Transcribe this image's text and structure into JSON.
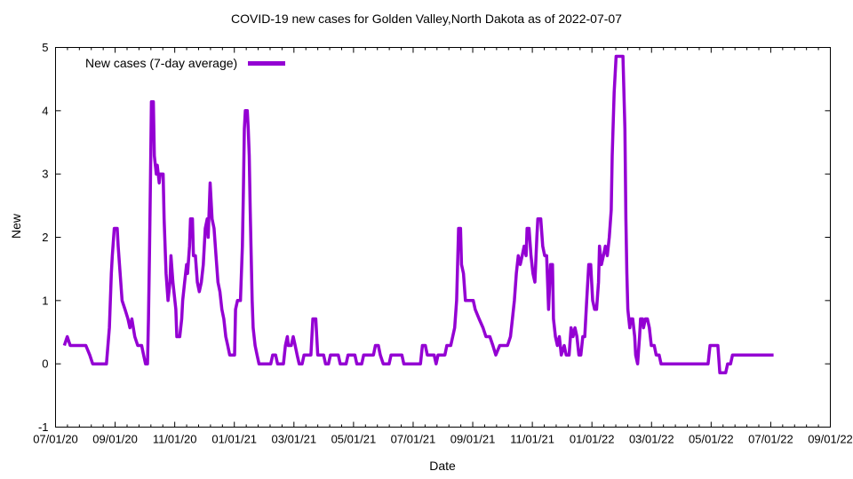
{
  "page": {
    "title": "COVID-19 new cases for Golden Valley,North Dakota as of 2022-07-07"
  },
  "chart": {
    "legend_label": "New cases (7-day average)",
    "x_label": "Date",
    "y_label": "New",
    "x_ticks": [
      "07/01/20",
      "09/01/20",
      "11/01/20",
      "01/01/21",
      "03/01/21",
      "05/01/21",
      "07/01/21",
      "09/01/21",
      "11/01/21",
      "01/01/22",
      "03/01/22",
      "05/01/22",
      "07/01/22",
      "09/01/22"
    ],
    "y_ticks": [
      "-1",
      "0",
      "1",
      "2",
      "3",
      "4",
      "5"
    ],
    "colors": {
      "line": "#9400d3",
      "axis": "#000000",
      "background": "#ffffff",
      "text": "#000000"
    }
  },
  "chart_data": {
    "type": "line",
    "title": "COVID-19 new cases for Golden Valley,North Dakota as of 2022-07-07",
    "xlabel": "Date",
    "ylabel": "New",
    "x_range": [
      "2020-07-01",
      "2022-09-01"
    ],
    "ylim": [
      -1,
      5
    ],
    "grid": false,
    "legend_position": "top-left-inside",
    "series": [
      {
        "name": "New cases (7-day average)",
        "color": "#9400d3",
        "points": [
          [
            "2020-07-10",
            0.29
          ],
          [
            "2020-07-13",
            0.43
          ],
          [
            "2020-07-16",
            0.29
          ],
          [
            "2020-08-01",
            0.29
          ],
          [
            "2020-08-05",
            0.14
          ],
          [
            "2020-08-08",
            0.0
          ],
          [
            "2020-08-22",
            0.0
          ],
          [
            "2020-08-25",
            0.57
          ],
          [
            "2020-08-26",
            1.0
          ],
          [
            "2020-08-27",
            1.43
          ],
          [
            "2020-08-28",
            1.71
          ],
          [
            "2020-08-30",
            2.14
          ],
          [
            "2020-09-02",
            2.14
          ],
          [
            "2020-09-03",
            1.86
          ],
          [
            "2020-09-05",
            1.43
          ],
          [
            "2020-09-07",
            1.0
          ],
          [
            "2020-09-10",
            0.86
          ],
          [
            "2020-09-13",
            0.71
          ],
          [
            "2020-09-15",
            0.57
          ],
          [
            "2020-09-17",
            0.71
          ],
          [
            "2020-09-20",
            0.43
          ],
          [
            "2020-09-23",
            0.29
          ],
          [
            "2020-09-27",
            0.29
          ],
          [
            "2020-09-29",
            0.14
          ],
          [
            "2020-10-01",
            0.0
          ],
          [
            "2020-10-03",
            0.0
          ],
          [
            "2020-10-04",
            0.71
          ],
          [
            "2020-10-05",
            1.71
          ],
          [
            "2020-10-06",
            2.86
          ],
          [
            "2020-10-07",
            4.14
          ],
          [
            "2020-10-09",
            4.14
          ],
          [
            "2020-10-10",
            3.29
          ],
          [
            "2020-10-12",
            3.0
          ],
          [
            "2020-10-13",
            3.14
          ],
          [
            "2020-10-15",
            2.86
          ],
          [
            "2020-10-16",
            3.0
          ],
          [
            "2020-10-19",
            3.0
          ],
          [
            "2020-10-20",
            2.29
          ],
          [
            "2020-10-22",
            1.43
          ],
          [
            "2020-10-24",
            1.0
          ],
          [
            "2020-10-26",
            1.29
          ],
          [
            "2020-10-27",
            1.71
          ],
          [
            "2020-10-29",
            1.29
          ],
          [
            "2020-11-01",
            0.86
          ],
          [
            "2020-11-02",
            0.43
          ],
          [
            "2020-11-05",
            0.43
          ],
          [
            "2020-11-07",
            0.71
          ],
          [
            "2020-11-08",
            1.0
          ],
          [
            "2020-11-10",
            1.29
          ],
          [
            "2020-11-12",
            1.57
          ],
          [
            "2020-11-13",
            1.43
          ],
          [
            "2020-11-15",
            1.86
          ],
          [
            "2020-11-16",
            2.29
          ],
          [
            "2020-11-18",
            2.29
          ],
          [
            "2020-11-19",
            1.71
          ],
          [
            "2020-11-21",
            1.71
          ],
          [
            "2020-11-23",
            1.29
          ],
          [
            "2020-11-25",
            1.14
          ],
          [
            "2020-11-27",
            1.29
          ],
          [
            "2020-11-29",
            1.57
          ],
          [
            "2020-12-01",
            2.14
          ],
          [
            "2020-12-03",
            2.29
          ],
          [
            "2020-12-04",
            2.0
          ],
          [
            "2020-12-06",
            2.86
          ],
          [
            "2020-12-08",
            2.29
          ],
          [
            "2020-12-10",
            2.14
          ],
          [
            "2020-12-12",
            1.71
          ],
          [
            "2020-12-14",
            1.29
          ],
          [
            "2020-12-16",
            1.14
          ],
          [
            "2020-12-18",
            0.86
          ],
          [
            "2020-12-20",
            0.71
          ],
          [
            "2020-12-22",
            0.43
          ],
          [
            "2020-12-24",
            0.29
          ],
          [
            "2020-12-26",
            0.14
          ],
          [
            "2020-12-31",
            0.14
          ],
          [
            "2021-01-01",
            0.86
          ],
          [
            "2021-01-03",
            1.0
          ],
          [
            "2021-01-06",
            1.0
          ],
          [
            "2021-01-08",
            1.86
          ],
          [
            "2021-01-09",
            2.71
          ],
          [
            "2021-01-10",
            3.71
          ],
          [
            "2021-01-11",
            4.0
          ],
          [
            "2021-01-13",
            4.0
          ],
          [
            "2021-01-14",
            3.71
          ],
          [
            "2021-01-15",
            3.29
          ],
          [
            "2021-01-16",
            2.43
          ],
          [
            "2021-01-17",
            1.71
          ],
          [
            "2021-01-18",
            1.0
          ],
          [
            "2021-01-19",
            0.57
          ],
          [
            "2021-01-21",
            0.29
          ],
          [
            "2021-01-23",
            0.14
          ],
          [
            "2021-01-25",
            0.0
          ],
          [
            "2021-02-06",
            0.0
          ],
          [
            "2021-02-08",
            0.14
          ],
          [
            "2021-02-11",
            0.14
          ],
          [
            "2021-02-13",
            0.0
          ],
          [
            "2021-02-19",
            0.0
          ],
          [
            "2021-02-21",
            0.29
          ],
          [
            "2021-02-23",
            0.43
          ],
          [
            "2021-02-24",
            0.29
          ],
          [
            "2021-02-27",
            0.29
          ],
          [
            "2021-03-01",
            0.43
          ],
          [
            "2021-03-03",
            0.29
          ],
          [
            "2021-03-05",
            0.14
          ],
          [
            "2021-03-07",
            0.0
          ],
          [
            "2021-03-10",
            0.0
          ],
          [
            "2021-03-12",
            0.14
          ],
          [
            "2021-03-19",
            0.14
          ],
          [
            "2021-03-21",
            0.71
          ],
          [
            "2021-03-24",
            0.71
          ],
          [
            "2021-03-26",
            0.14
          ],
          [
            "2021-04-01",
            0.14
          ],
          [
            "2021-04-03",
            0.0
          ],
          [
            "2021-04-06",
            0.0
          ],
          [
            "2021-04-08",
            0.14
          ],
          [
            "2021-04-16",
            0.14
          ],
          [
            "2021-04-18",
            0.0
          ],
          [
            "2021-04-24",
            0.0
          ],
          [
            "2021-04-26",
            0.14
          ],
          [
            "2021-05-03",
            0.14
          ],
          [
            "2021-05-05",
            0.0
          ],
          [
            "2021-05-10",
            0.0
          ],
          [
            "2021-05-12",
            0.14
          ],
          [
            "2021-05-22",
            0.14
          ],
          [
            "2021-05-24",
            0.29
          ],
          [
            "2021-05-27",
            0.29
          ],
          [
            "2021-05-29",
            0.14
          ],
          [
            "2021-06-01",
            0.0
          ],
          [
            "2021-06-07",
            0.0
          ],
          [
            "2021-06-09",
            0.14
          ],
          [
            "2021-06-20",
            0.14
          ],
          [
            "2021-06-22",
            0.0
          ],
          [
            "2021-07-09",
            0.0
          ],
          [
            "2021-07-11",
            0.29
          ],
          [
            "2021-07-14",
            0.29
          ],
          [
            "2021-07-16",
            0.14
          ],
          [
            "2021-07-23",
            0.14
          ],
          [
            "2021-07-25",
            0.0
          ],
          [
            "2021-07-27",
            0.14
          ],
          [
            "2021-08-03",
            0.14
          ],
          [
            "2021-08-05",
            0.29
          ],
          [
            "2021-08-09",
            0.29
          ],
          [
            "2021-08-11",
            0.43
          ],
          [
            "2021-08-13",
            0.57
          ],
          [
            "2021-08-15",
            1.0
          ],
          [
            "2021-08-16",
            1.57
          ],
          [
            "2021-08-17",
            2.14
          ],
          [
            "2021-08-19",
            2.14
          ],
          [
            "2021-08-20",
            1.57
          ],
          [
            "2021-08-22",
            1.43
          ],
          [
            "2021-08-24",
            1.0
          ],
          [
            "2021-09-01",
            1.0
          ],
          [
            "2021-09-03",
            0.86
          ],
          [
            "2021-09-07",
            0.71
          ],
          [
            "2021-09-11",
            0.57
          ],
          [
            "2021-09-14",
            0.43
          ],
          [
            "2021-09-18",
            0.43
          ],
          [
            "2021-09-21",
            0.29
          ],
          [
            "2021-09-24",
            0.14
          ],
          [
            "2021-09-28",
            0.29
          ],
          [
            "2021-10-06",
            0.29
          ],
          [
            "2021-10-09",
            0.43
          ],
          [
            "2021-10-11",
            0.71
          ],
          [
            "2021-10-13",
            1.0
          ],
          [
            "2021-10-15",
            1.43
          ],
          [
            "2021-10-17",
            1.71
          ],
          [
            "2021-10-19",
            1.57
          ],
          [
            "2021-10-21",
            1.71
          ],
          [
            "2021-10-23",
            1.86
          ],
          [
            "2021-10-25",
            1.71
          ],
          [
            "2021-10-26",
            2.14
          ],
          [
            "2021-10-28",
            2.14
          ],
          [
            "2021-10-30",
            1.71
          ],
          [
            "2021-11-01",
            1.43
          ],
          [
            "2021-11-03",
            1.29
          ],
          [
            "2021-11-05",
            2.0
          ],
          [
            "2021-11-06",
            2.29
          ],
          [
            "2021-11-09",
            2.29
          ],
          [
            "2021-11-11",
            1.86
          ],
          [
            "2021-11-13",
            1.71
          ],
          [
            "2021-11-15",
            1.71
          ],
          [
            "2021-11-17",
            0.86
          ],
          [
            "2021-11-19",
            1.57
          ],
          [
            "2021-11-21",
            1.57
          ],
          [
            "2021-11-22",
            0.71
          ],
          [
            "2021-11-24",
            0.43
          ],
          [
            "2021-11-26",
            0.29
          ],
          [
            "2021-11-28",
            0.43
          ],
          [
            "2021-11-30",
            0.14
          ],
          [
            "2021-12-03",
            0.29
          ],
          [
            "2021-12-05",
            0.14
          ],
          [
            "2021-12-08",
            0.14
          ],
          [
            "2021-12-10",
            0.57
          ],
          [
            "2021-12-12",
            0.43
          ],
          [
            "2021-12-14",
            0.57
          ],
          [
            "2021-12-16",
            0.43
          ],
          [
            "2021-12-18",
            0.14
          ],
          [
            "2021-12-20",
            0.14
          ],
          [
            "2021-12-22",
            0.43
          ],
          [
            "2021-12-24",
            0.43
          ],
          [
            "2021-12-26",
            1.0
          ],
          [
            "2021-12-28",
            1.57
          ],
          [
            "2021-12-30",
            1.57
          ],
          [
            "2022-01-01",
            1.0
          ],
          [
            "2022-01-03",
            0.86
          ],
          [
            "2022-01-05",
            0.86
          ],
          [
            "2022-01-07",
            1.29
          ],
          [
            "2022-01-08",
            1.86
          ],
          [
            "2022-01-10",
            1.57
          ],
          [
            "2022-01-12",
            1.71
          ],
          [
            "2022-01-14",
            1.86
          ],
          [
            "2022-01-16",
            1.71
          ],
          [
            "2022-01-18",
            2.0
          ],
          [
            "2022-01-20",
            2.43
          ],
          [
            "2022-01-21",
            3.29
          ],
          [
            "2022-01-23",
            4.29
          ],
          [
            "2022-01-25",
            4.86
          ],
          [
            "2022-02-01",
            4.86
          ],
          [
            "2022-02-03",
            3.71
          ],
          [
            "2022-02-04",
            2.29
          ],
          [
            "2022-02-05",
            1.43
          ],
          [
            "2022-02-06",
            0.86
          ],
          [
            "2022-02-07",
            0.71
          ],
          [
            "2022-02-08",
            0.57
          ],
          [
            "2022-02-09",
            0.71
          ],
          [
            "2022-02-11",
            0.71
          ],
          [
            "2022-02-13",
            0.43
          ],
          [
            "2022-02-14",
            0.14
          ],
          [
            "2022-02-16",
            0.0
          ],
          [
            "2022-02-18",
            0.43
          ],
          [
            "2022-02-19",
            0.71
          ],
          [
            "2022-02-21",
            0.71
          ],
          [
            "2022-02-22",
            0.57
          ],
          [
            "2022-02-24",
            0.71
          ],
          [
            "2022-02-26",
            0.71
          ],
          [
            "2022-02-28",
            0.57
          ],
          [
            "2022-03-02",
            0.29
          ],
          [
            "2022-03-05",
            0.29
          ],
          [
            "2022-03-07",
            0.14
          ],
          [
            "2022-03-10",
            0.14
          ],
          [
            "2022-03-12",
            0.0
          ],
          [
            "2022-04-29",
            0.0
          ],
          [
            "2022-05-01",
            0.29
          ],
          [
            "2022-05-09",
            0.29
          ],
          [
            "2022-05-11",
            -0.14
          ],
          [
            "2022-05-17",
            -0.14
          ],
          [
            "2022-05-19",
            0.0
          ],
          [
            "2022-05-22",
            0.0
          ],
          [
            "2022-05-24",
            0.14
          ],
          [
            "2022-07-05",
            0.14
          ]
        ]
      }
    ]
  }
}
